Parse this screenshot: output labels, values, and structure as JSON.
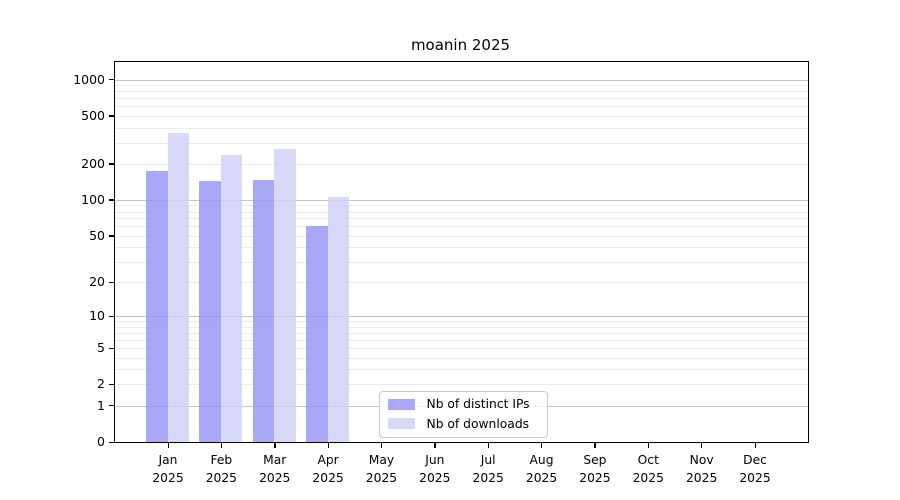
{
  "title": "moanin 2025",
  "chart_data": {
    "type": "bar",
    "title": "moanin 2025",
    "y_scale": "log10(1+value)",
    "ylim": [
      0,
      1400
    ],
    "y_ticks": [
      0,
      1,
      2,
      5,
      10,
      20,
      50,
      100,
      200,
      500,
      1000
    ],
    "grid": "horizontal, log decades major + log minors",
    "legend_position": "bottom-center-inside",
    "categories": [
      {
        "month": "Jan",
        "year": "2025"
      },
      {
        "month": "Feb",
        "year": "2025"
      },
      {
        "month": "Mar",
        "year": "2025"
      },
      {
        "month": "Apr",
        "year": "2025"
      },
      {
        "month": "May",
        "year": "2025"
      },
      {
        "month": "Jun",
        "year": "2025"
      },
      {
        "month": "Jul",
        "year": "2025"
      },
      {
        "month": "Aug",
        "year": "2025"
      },
      {
        "month": "Sep",
        "year": "2025"
      },
      {
        "month": "Oct",
        "year": "2025"
      },
      {
        "month": "Nov",
        "year": "2025"
      },
      {
        "month": "Dec",
        "year": "2025"
      }
    ],
    "series": [
      {
        "name": "Nb of distinct IPs",
        "color": "#9292f4",
        "opacity": 0.8,
        "values": [
          174,
          144,
          148,
          60,
          0,
          0,
          0,
          0,
          0,
          0,
          0,
          0
        ]
      },
      {
        "name": "Nb of downloads",
        "color": "#cecef6",
        "opacity": 0.8,
        "values": [
          361,
          238,
          268,
          106,
          0,
          0,
          0,
          0,
          0,
          0,
          0,
          0
        ]
      }
    ]
  },
  "colors": {
    "major_grid": "#c4c4c4",
    "minor_grid": "#ebebeb",
    "axis": "#000000",
    "legend_border": "#c9c9c9",
    "background": "#ffffff"
  }
}
